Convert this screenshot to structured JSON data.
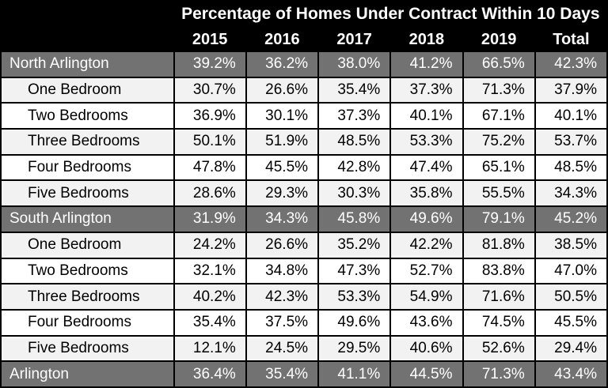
{
  "colors": {
    "header_bg": "#000000",
    "header_text": "#ffffff",
    "section_row_bg": "#727272",
    "section_row_text": "#ffffff",
    "stripe_row_bg": "#f2f2f2",
    "plain_row_bg": "#ffffff",
    "body_text": "#000000",
    "grid_border": "#000000"
  },
  "table": {
    "title": "Percentage of Homes Under Contract Within 10 Days",
    "columns": [
      "2015",
      "2016",
      "2017",
      "2018",
      "2019",
      "Total"
    ],
    "rows": [
      {
        "label": "North Arlington",
        "values": [
          "39.2%",
          "36.2%",
          "38.0%",
          "41.2%",
          "66.5%",
          "42.3%"
        ]
      },
      {
        "label": "One Bedroom",
        "values": [
          "30.7%",
          "26.6%",
          "35.4%",
          "37.3%",
          "71.3%",
          "37.9%"
        ]
      },
      {
        "label": "Two Bedrooms",
        "values": [
          "36.9%",
          "30.1%",
          "37.3%",
          "40.1%",
          "67.1%",
          "40.1%"
        ]
      },
      {
        "label": "Three Bedrooms",
        "values": [
          "50.1%",
          "51.9%",
          "48.5%",
          "53.3%",
          "75.2%",
          "53.7%"
        ]
      },
      {
        "label": "Four Bedrooms",
        "values": [
          "47.8%",
          "45.5%",
          "42.8%",
          "47.4%",
          "65.1%",
          "48.5%"
        ]
      },
      {
        "label": "Five Bedrooms",
        "values": [
          "28.6%",
          "29.3%",
          "30.3%",
          "35.8%",
          "55.5%",
          "34.3%"
        ]
      },
      {
        "label": "South Arlington",
        "values": [
          "31.9%",
          "34.3%",
          "45.8%",
          "49.6%",
          "79.1%",
          "45.2%"
        ]
      },
      {
        "label": "One Bedroom",
        "values": [
          "24.2%",
          "26.6%",
          "35.2%",
          "42.2%",
          "81.8%",
          "38.5%"
        ]
      },
      {
        "label": "Two Bedrooms",
        "values": [
          "32.1%",
          "34.8%",
          "47.3%",
          "52.7%",
          "83.8%",
          "47.0%"
        ]
      },
      {
        "label": "Three Bedrooms",
        "values": [
          "40.2%",
          "42.3%",
          "53.3%",
          "54.9%",
          "71.6%",
          "50.5%"
        ]
      },
      {
        "label": "Four Bedrooms",
        "values": [
          "35.4%",
          "37.5%",
          "49.6%",
          "43.6%",
          "74.5%",
          "45.5%"
        ]
      },
      {
        "label": "Five Bedrooms",
        "values": [
          "12.1%",
          "24.5%",
          "29.5%",
          "40.6%",
          "52.6%",
          "29.4%"
        ]
      },
      {
        "label": "Arlington",
        "values": [
          "36.4%",
          "35.4%",
          "41.1%",
          "44.5%",
          "71.3%",
          "43.4%"
        ]
      }
    ]
  },
  "chart_data": {
    "type": "table",
    "title": "Percentage of Homes Under Contract Within 10 Days",
    "unit": "%",
    "columns": [
      "2015",
      "2016",
      "2017",
      "2018",
      "2019",
      "Total"
    ],
    "rows": [
      {
        "label": "North Arlington",
        "group": "section",
        "values": [
          39.2,
          36.2,
          38.0,
          41.2,
          66.5,
          42.3
        ]
      },
      {
        "label": "One Bedroom",
        "group": "North Arlington",
        "values": [
          30.7,
          26.6,
          35.4,
          37.3,
          71.3,
          37.9
        ]
      },
      {
        "label": "Two Bedrooms",
        "group": "North Arlington",
        "values": [
          36.9,
          30.1,
          37.3,
          40.1,
          67.1,
          40.1
        ]
      },
      {
        "label": "Three Bedrooms",
        "group": "North Arlington",
        "values": [
          50.1,
          51.9,
          48.5,
          53.3,
          75.2,
          53.7
        ]
      },
      {
        "label": "Four Bedrooms",
        "group": "North Arlington",
        "values": [
          47.8,
          45.5,
          42.8,
          47.4,
          65.1,
          48.5
        ]
      },
      {
        "label": "Five Bedrooms",
        "group": "North Arlington",
        "values": [
          28.6,
          29.3,
          30.3,
          35.8,
          55.5,
          34.3
        ]
      },
      {
        "label": "South Arlington",
        "group": "section",
        "values": [
          31.9,
          34.3,
          45.8,
          49.6,
          79.1,
          45.2
        ]
      },
      {
        "label": "One Bedroom",
        "group": "South Arlington",
        "values": [
          24.2,
          26.6,
          35.2,
          42.2,
          81.8,
          38.5
        ]
      },
      {
        "label": "Two Bedrooms",
        "group": "South Arlington",
        "values": [
          32.1,
          34.8,
          47.3,
          52.7,
          83.8,
          47.0
        ]
      },
      {
        "label": "Three Bedrooms",
        "group": "South Arlington",
        "values": [
          40.2,
          42.3,
          53.3,
          54.9,
          71.6,
          50.5
        ]
      },
      {
        "label": "Four Bedrooms",
        "group": "South Arlington",
        "values": [
          35.4,
          37.5,
          49.6,
          43.6,
          74.5,
          45.5
        ]
      },
      {
        "label": "Five Bedrooms",
        "group": "South Arlington",
        "values": [
          12.1,
          24.5,
          29.5,
          40.6,
          52.6,
          29.4
        ]
      },
      {
        "label": "Arlington",
        "group": "section",
        "values": [
          36.4,
          35.4,
          41.1,
          44.5,
          71.3,
          43.4
        ]
      }
    ]
  }
}
